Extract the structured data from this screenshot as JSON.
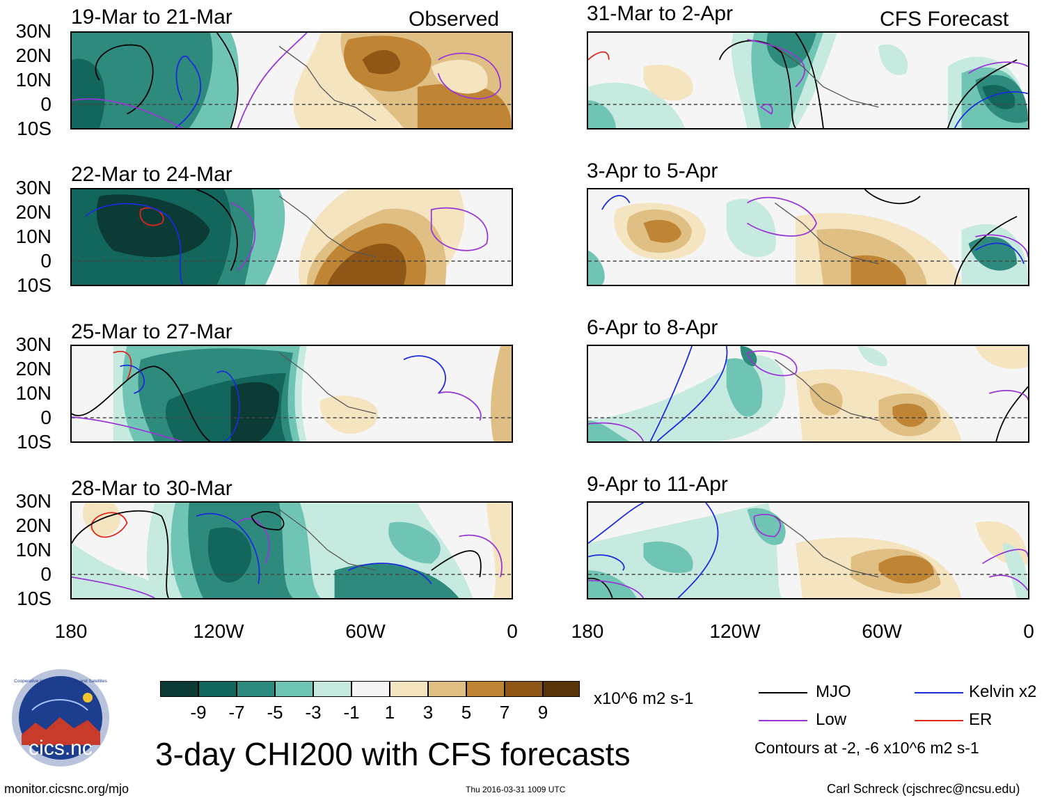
{
  "panels": {
    "p1": {
      "title": "19-Mar to 21-Mar",
      "tag": "Observed"
    },
    "p2": {
      "title": "22-Mar to 24-Mar"
    },
    "p3": {
      "title": "25-Mar to 27-Mar"
    },
    "p4": {
      "title": "28-Mar to 30-Mar"
    },
    "p5": {
      "title": "31-Mar to 2-Apr",
      "tag": "CFS Forecast"
    },
    "p6": {
      "title": "3-Apr to 5-Apr"
    },
    "p7": {
      "title": "6-Apr to 8-Apr"
    },
    "p8": {
      "title": "9-Apr to 11-Apr"
    }
  },
  "lat_ticks": [
    "30N",
    "20N",
    "10N",
    "0",
    "10S"
  ],
  "lon_ticks": [
    "180",
    "120W",
    "60W",
    "0"
  ],
  "colorbar": {
    "labels": [
      "-9",
      "-7",
      "-5",
      "-3",
      "-1",
      "1",
      "3",
      "5",
      "7",
      "9"
    ],
    "colors": [
      "#0b3b34",
      "#13665b",
      "#2e8a7d",
      "#6fc4b3",
      "#c6eadf",
      "#f5f5f5",
      "#f5e4c0",
      "#dfbf84",
      "#bf8535",
      "#8e5617",
      "#5a3409"
    ],
    "units": "x10^6 m2 s-1"
  },
  "main_title": "3-day CHI200 with CFS forecasts",
  "legend": {
    "mjo": {
      "label": "MJO",
      "color": "#000000"
    },
    "kelvin": {
      "label": "Kelvin x2",
      "color": "#1a2bdc"
    },
    "low": {
      "label": "Low",
      "color": "#9a35d8"
    },
    "er": {
      "label": "ER",
      "color": "#e0261b"
    },
    "contours_note": "Contours at -2, -6 x10^6 m2 s-1"
  },
  "logo_text": "cics.nc",
  "logo_ring_text": "Cooperative Institute for Climate and Satellites",
  "footer": {
    "url": "monitor.cicsnc.org/mjo",
    "timestamp": "Thu 2016-03-31 1009 UTC",
    "author": "Carl Schreck (cjschrec@ncsu.edu)"
  }
}
